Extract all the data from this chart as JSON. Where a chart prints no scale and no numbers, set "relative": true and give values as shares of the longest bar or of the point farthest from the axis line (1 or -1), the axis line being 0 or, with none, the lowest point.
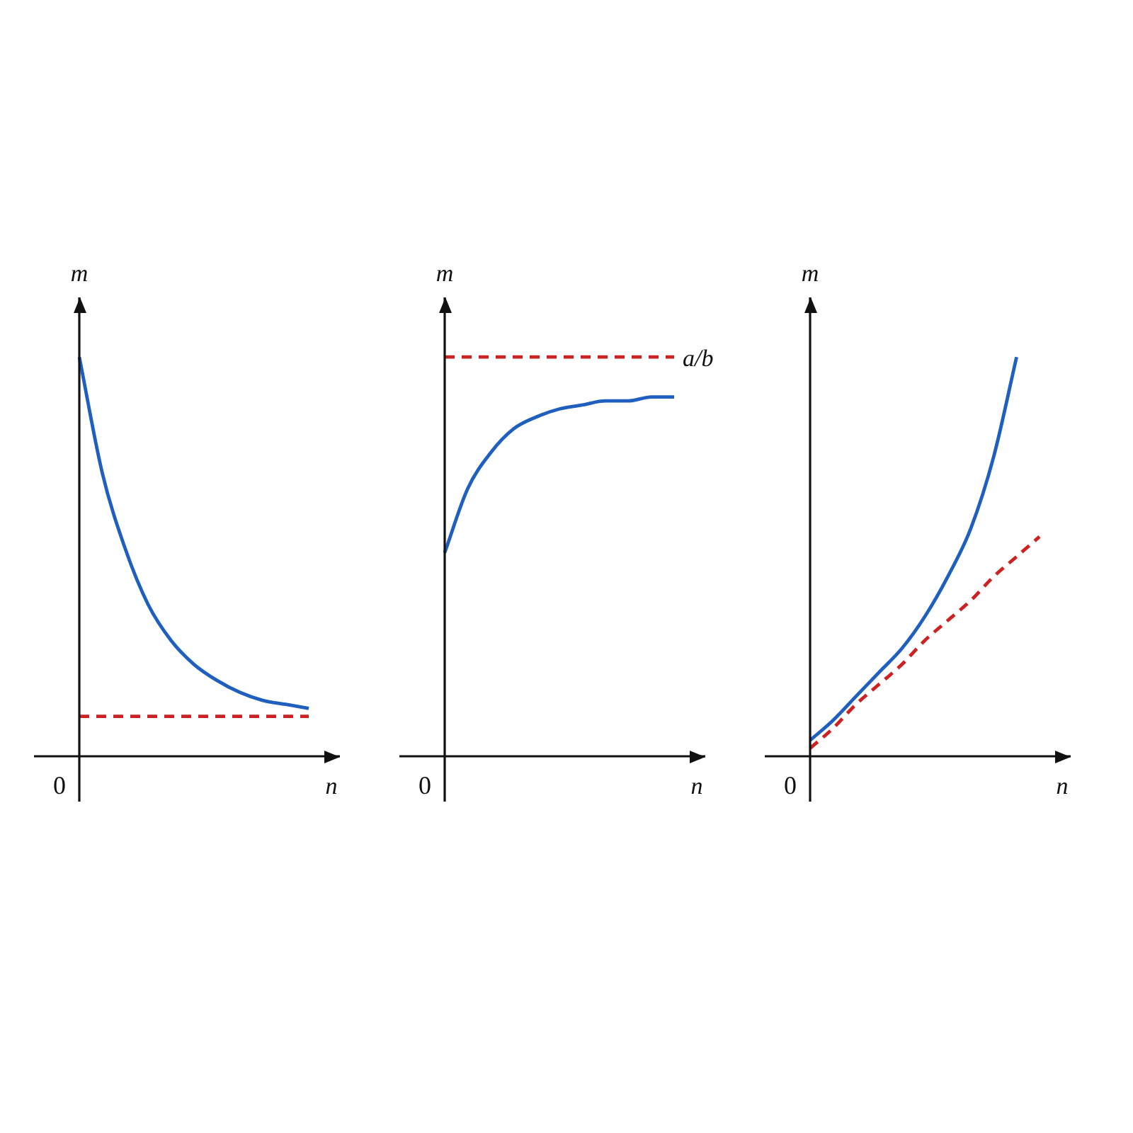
{
  "chart_data": [
    {
      "type": "line",
      "relative": true,
      "xlabel": "n",
      "ylabel": "m",
      "annotations": [
        "0"
      ],
      "categories": [
        null,
        null,
        null,
        null,
        null,
        null,
        null,
        null,
        null,
        null,
        null
      ],
      "series": [
        {
          "color": "#1f5fbf",
          "values": [
            1,
            0.71,
            0.52,
            0.38,
            0.29,
            0.23,
            0.19,
            0.16,
            0.14,
            0.13,
            0.12
          ]
        },
        {
          "color": "#cc2222",
          "line_style": "dashed",
          "values": [
            0.1,
            0.1,
            0.1,
            0.1,
            0.1,
            0.1,
            0.1,
            0.1,
            0.1,
            0.1,
            0.1
          ]
        }
      ]
    },
    {
      "type": "line",
      "relative": true,
      "xlabel": "n",
      "ylabel": "m",
      "annotations": [
        "0"
      ],
      "categories": [
        null,
        null,
        null,
        null,
        null,
        null,
        null,
        null,
        null,
        null,
        null
      ],
      "series": [
        {
          "color": "#1f5fbf",
          "values": [
            0.51,
            0.67,
            0.76,
            0.82,
            0.85,
            0.87,
            0.88,
            0.89,
            0.89,
            0.9,
            0.9
          ]
        },
        {
          "name": "a/b",
          "color": "#cc2222",
          "line_style": "dashed",
          "values": [
            1,
            1,
            1,
            1,
            1,
            1,
            1,
            1,
            1,
            1,
            1
          ]
        }
      ]
    },
    {
      "type": "line",
      "relative": true,
      "xlabel": "n",
      "ylabel": "m",
      "annotations": [
        "0"
      ],
      "categories": [
        null,
        null,
        null,
        null,
        null,
        null,
        null,
        null,
        null,
        null,
        null
      ],
      "series": [
        {
          "color": "#1f5fbf",
          "values": [
            0.04,
            0.09,
            0.15,
            0.21,
            0.27,
            0.35,
            0.45,
            0.57,
            0.75,
            1,
            null
          ]
        },
        {
          "color": "#cc2222",
          "line_style": "dashed",
          "values": [
            0.02,
            0.07,
            0.13,
            0.18,
            0.23,
            0.29,
            0.34,
            0.39,
            0.45,
            0.5,
            0.55
          ]
        }
      ]
    }
  ]
}
